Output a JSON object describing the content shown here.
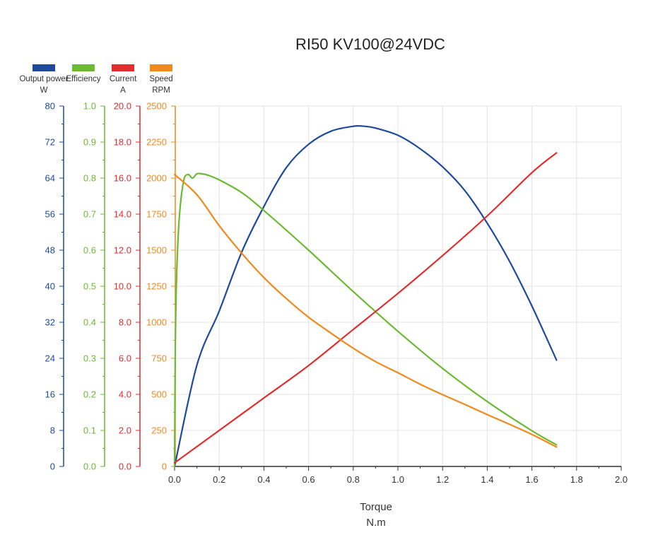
{
  "chart_data": {
    "type": "line",
    "title": "RI50 KV100@24VDC",
    "xlabel": "Torque",
    "xunit": "N.m",
    "xlim": [
      0,
      2.0
    ],
    "xticks": [
      0.0,
      0.2,
      0.4,
      0.6,
      0.8,
      1.0,
      1.2,
      1.4,
      1.6,
      1.8,
      2.0
    ],
    "grid": true,
    "legend_position": "top-left",
    "axes": [
      {
        "name": "Output power",
        "unit": "W",
        "color": "#1e4a9c",
        "ylim": [
          0,
          80
        ],
        "ticks": [
          "0",
          "8",
          "16",
          "24",
          "32",
          "40",
          "48",
          "56",
          "64",
          "72",
          "80"
        ]
      },
      {
        "name": "Efficiency",
        "unit": "",
        "color": "#6cb933",
        "ylim": [
          0,
          1.0
        ],
        "ticks": [
          "0.0",
          "0.1",
          "0.2",
          "0.3",
          "0.4",
          "0.5",
          "0.6",
          "0.7",
          "0.8",
          "0.9",
          "1.0"
        ]
      },
      {
        "name": "Current",
        "unit": "A",
        "color": "#e02d2d",
        "ylim": [
          0,
          20
        ],
        "ticks": [
          "0.0",
          "2.0",
          "4.0",
          "6.0",
          "8.0",
          "10.0",
          "12.0",
          "14.0",
          "16.0",
          "18.0",
          "20.0"
        ]
      },
      {
        "name": "Speed",
        "unit": "RPM",
        "color": "#ef8a1d",
        "ylim": [
          0,
          2500
        ],
        "ticks": [
          "0",
          "250",
          "500",
          "750",
          "1000",
          "1250",
          "1500",
          "1750",
          "2000",
          "2250",
          "2500"
        ]
      }
    ],
    "series": [
      {
        "name": "Output power",
        "axis": 0,
        "color": "#1e4a9c",
        "x": [
          0,
          0.1,
          0.2,
          0.3,
          0.4,
          0.5,
          0.6,
          0.7,
          0.8,
          0.85,
          0.9,
          1.0,
          1.1,
          1.2,
          1.3,
          1.4,
          1.5,
          1.6,
          1.71
        ],
        "y": [
          0,
          22.5,
          34.5,
          47.5,
          57.7,
          66.3,
          71.5,
          74.4,
          75.5,
          75.5,
          75.1,
          73.5,
          70.5,
          66.5,
          61.2,
          54.0,
          45.5,
          35.6,
          23.6
        ]
      },
      {
        "name": "Efficiency",
        "axis": 1,
        "color": "#6cb933",
        "x": [
          0,
          0.003,
          0.008,
          0.02,
          0.04,
          0.06,
          0.08,
          0.1,
          0.12,
          0.15,
          0.2,
          0.3,
          0.4,
          0.6,
          0.8,
          1.0,
          1.2,
          1.4,
          1.6,
          1.71
        ],
        "y": [
          0,
          0.3,
          0.5,
          0.68,
          0.79,
          0.81,
          0.8,
          0.812,
          0.812,
          0.808,
          0.795,
          0.76,
          0.71,
          0.6,
          0.485,
          0.375,
          0.272,
          0.18,
          0.099,
          0.06
        ]
      },
      {
        "name": "Current",
        "axis": 2,
        "color": "#e02d2d",
        "x": [
          0,
          0.2,
          0.4,
          0.6,
          0.8,
          1.0,
          1.2,
          1.4,
          1.6,
          1.71
        ],
        "y": [
          0.2,
          2.0,
          3.8,
          5.6,
          7.6,
          9.6,
          11.7,
          13.9,
          16.3,
          17.4
        ]
      },
      {
        "name": "Speed",
        "axis": 3,
        "color": "#ef8a1d",
        "x": [
          0,
          0.1,
          0.2,
          0.3,
          0.4,
          0.5,
          0.6,
          0.7,
          0.8,
          0.9,
          1.0,
          1.1,
          1.2,
          1.3,
          1.4,
          1.5,
          1.6,
          1.71
        ],
        "y": [
          2025,
          1885,
          1670,
          1480,
          1310,
          1165,
          1035,
          925,
          820,
          727,
          650,
          570,
          498,
          430,
          360,
          292,
          222,
          135
        ]
      }
    ]
  }
}
